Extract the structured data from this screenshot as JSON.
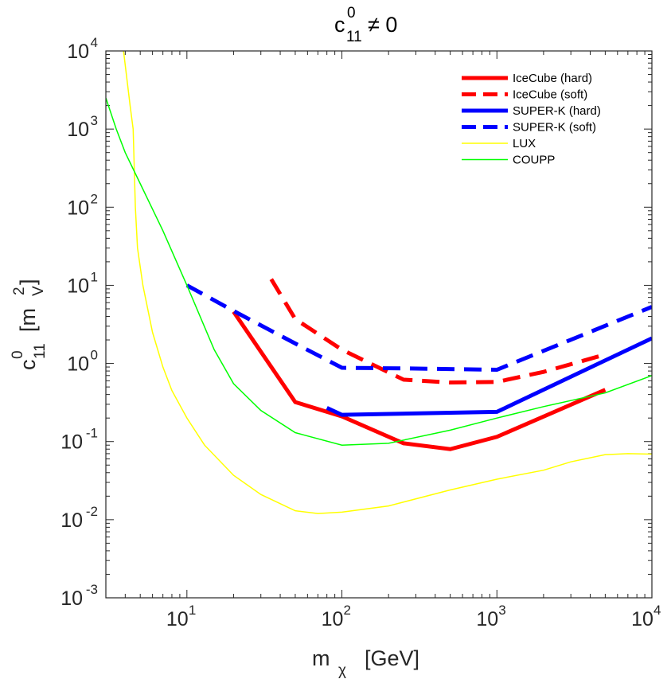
{
  "chart_data": {
    "type": "line",
    "title": {
      "base": "c",
      "sup": "0",
      "sub": "11",
      "rest": "≠ 0"
    },
    "xlabel": {
      "base": "m",
      "sub": "χ",
      "unit": "[GeV]"
    },
    "ylabel": {
      "base": "c",
      "sup": "0",
      "sub": "11",
      "unit_open": "[m",
      "unit_sup": "2",
      "unit_sub": "V",
      "unit_close": "]"
    },
    "xscale": "log",
    "yscale": "log",
    "xlim": [
      3,
      10000
    ],
    "ylim": [
      0.001,
      10000
    ],
    "xticks": [
      {
        "value": 10,
        "base": "10",
        "exp": "1"
      },
      {
        "value": 100,
        "base": "10",
        "exp": "2"
      },
      {
        "value": 1000,
        "base": "10",
        "exp": "3"
      },
      {
        "value": 10000,
        "base": "10",
        "exp": "4"
      }
    ],
    "yticks": [
      {
        "value": 0.001,
        "base": "10",
        "exp": "-3"
      },
      {
        "value": 0.01,
        "base": "10",
        "exp": "-2"
      },
      {
        "value": 0.1,
        "base": "10",
        "exp": "-1"
      },
      {
        "value": 1,
        "base": "10",
        "exp": "0"
      },
      {
        "value": 10,
        "base": "10",
        "exp": "1"
      },
      {
        "value": 100,
        "base": "10",
        "exp": "2"
      },
      {
        "value": 1000,
        "base": "10",
        "exp": "3"
      },
      {
        "value": 10000,
        "base": "10",
        "exp": "4"
      }
    ],
    "legend_position": "top-right",
    "series": [
      {
        "name": "IceCube (hard)",
        "color": "#ff0000",
        "style": "solid",
        "width": "thick",
        "points": [
          [
            20,
            4.6
          ],
          [
            50,
            0.32
          ],
          [
            100,
            0.21
          ],
          [
            250,
            0.095
          ],
          [
            500,
            0.08
          ],
          [
            1000,
            0.115
          ],
          [
            5000,
            0.46
          ]
        ]
      },
      {
        "name": "IceCube (soft)",
        "color": "#ff0000",
        "style": "dashed",
        "width": "thick",
        "points": [
          [
            35,
            12
          ],
          [
            50,
            3.7
          ],
          [
            100,
            1.5
          ],
          [
            250,
            0.62
          ],
          [
            500,
            0.57
          ],
          [
            1000,
            0.58
          ],
          [
            2000,
            0.78
          ],
          [
            5000,
            1.3
          ]
        ]
      },
      {
        "name": "SUPER-K (hard)",
        "color": "#0000ff",
        "style": "solid",
        "width": "thick",
        "points": [
          [
            80,
            0.27
          ],
          [
            100,
            0.22
          ],
          [
            1000,
            0.24
          ],
          [
            10000,
            2.1
          ]
        ]
      },
      {
        "name": "SUPER-K (soft)",
        "color": "#0000ff",
        "style": "dashed",
        "width": "thick",
        "points": [
          [
            10,
            10
          ],
          [
            20,
            4.7
          ],
          [
            50,
            1.8
          ],
          [
            100,
            0.88
          ],
          [
            300,
            0.86
          ],
          [
            1000,
            0.83
          ],
          [
            10000,
            5.3
          ]
        ]
      },
      {
        "name": "LUX",
        "color": "#ffff00",
        "style": "solid",
        "width": "thin",
        "points": [
          [
            3.9,
            10000
          ],
          [
            4.3,
            2000
          ],
          [
            4.5,
            1000
          ],
          [
            4.65,
            100
          ],
          [
            4.8,
            30
          ],
          [
            5.2,
            10
          ],
          [
            6,
            2.5
          ],
          [
            7,
            0.9
          ],
          [
            8,
            0.45
          ],
          [
            10,
            0.2
          ],
          [
            13,
            0.09
          ],
          [
            20,
            0.037
          ],
          [
            30,
            0.021
          ],
          [
            50,
            0.013
          ],
          [
            70,
            0.012
          ],
          [
            100,
            0.0125
          ],
          [
            200,
            0.015
          ],
          [
            500,
            0.024
          ],
          [
            1000,
            0.033
          ],
          [
            2000,
            0.043
          ],
          [
            3000,
            0.055
          ],
          [
            5000,
            0.068
          ],
          [
            7000,
            0.07
          ],
          [
            10000,
            0.069
          ]
        ]
      },
      {
        "name": "COUPP",
        "color": "#00ff00",
        "style": "solid",
        "width": "thin",
        "points": [
          [
            3,
            2500
          ],
          [
            3.5,
            1000
          ],
          [
            4,
            500
          ],
          [
            5,
            200
          ],
          [
            7,
            50
          ],
          [
            10,
            10
          ],
          [
            15,
            1.5
          ],
          [
            20,
            0.55
          ],
          [
            30,
            0.25
          ],
          [
            50,
            0.13
          ],
          [
            100,
            0.09
          ],
          [
            200,
            0.095
          ],
          [
            500,
            0.14
          ],
          [
            1000,
            0.2
          ],
          [
            2000,
            0.28
          ],
          [
            5000,
            0.42
          ],
          [
            10000,
            0.7
          ]
        ]
      }
    ]
  }
}
